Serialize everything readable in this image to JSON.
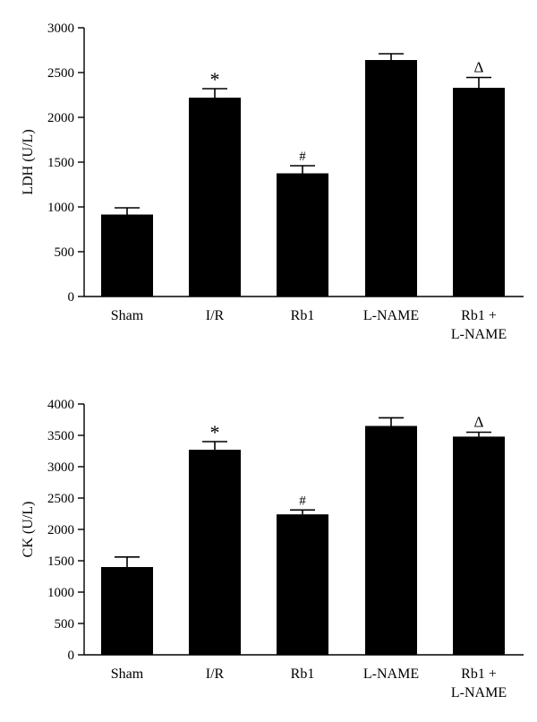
{
  "chart_data": [
    {
      "type": "bar",
      "ylabel": "LDH (U/L)",
      "xlabel": "",
      "ylim": [
        0,
        3000
      ],
      "yticks": [
        0,
        500,
        1000,
        1500,
        2000,
        2500,
        3000
      ],
      "categories": [
        [
          "Sham"
        ],
        [
          "I/R"
        ],
        [
          "Rb1"
        ],
        [
          "L-NAME"
        ],
        [
          "Rb1 +",
          "L-NAME"
        ]
      ],
      "values": [
        915,
        2220,
        1375,
        2640,
        2330
      ],
      "errors": [
        75,
        100,
        85,
        70,
        115
      ],
      "annotations": [
        "",
        "*",
        "#",
        "",
        "Δ"
      ],
      "bar_color": "#000000",
      "grid": false
    },
    {
      "type": "bar",
      "ylabel": "CK (U/L)",
      "xlabel": "",
      "ylim": [
        0,
        4000
      ],
      "yticks": [
        0,
        500,
        1000,
        1500,
        2000,
        2500,
        3000,
        3500,
        4000
      ],
      "categories": [
        [
          "Sham"
        ],
        [
          "I/R"
        ],
        [
          "Rb1"
        ],
        [
          "L-NAME"
        ],
        [
          "Rb1 +",
          "L-NAME"
        ]
      ],
      "values": [
        1400,
        3270,
        2240,
        3650,
        3480
      ],
      "errors": [
        160,
        130,
        70,
        130,
        70
      ],
      "annotations": [
        "",
        "*",
        "#",
        "",
        "Δ"
      ],
      "bar_color": "#000000",
      "grid": false
    }
  ]
}
